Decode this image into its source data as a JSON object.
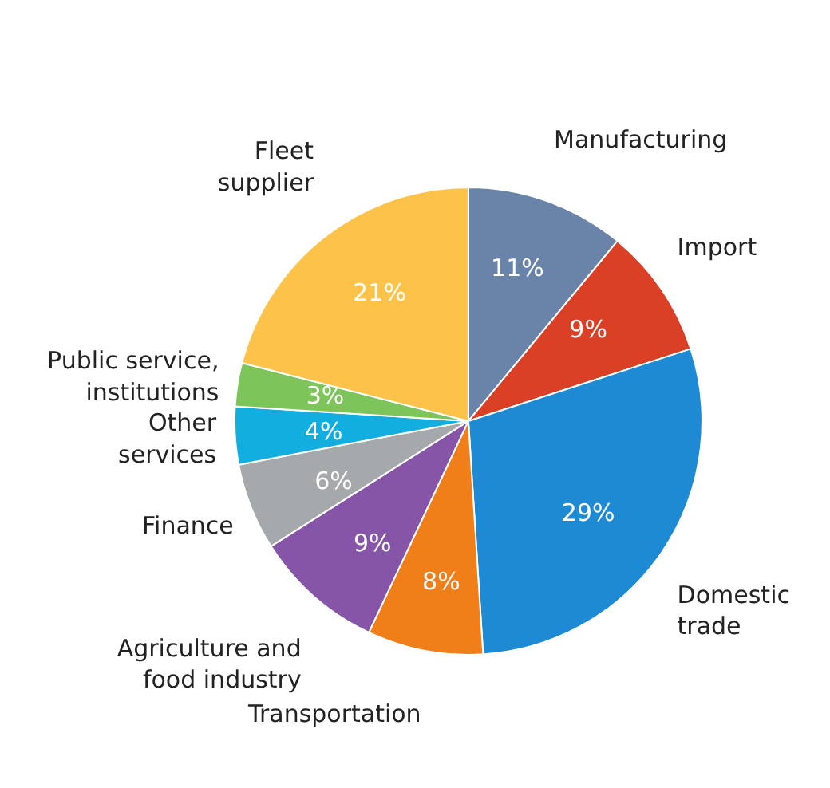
{
  "chart_data": {
    "type": "pie",
    "categories": [
      "Manufacturing",
      "Import",
      "Domestic\ntrade",
      "Transportation",
      "Agriculture and\nfood industry",
      "Finance",
      "Other\nservices",
      "Public service,\ninstitutions",
      "Fleet\nsupplier"
    ],
    "values": [
      11,
      9,
      29,
      8,
      9,
      6,
      4,
      3,
      21
    ],
    "colors": [
      "#6a83a8",
      "#d94026",
      "#1f8ad4",
      "#f07f1a",
      "#8655a8",
      "#a5a9ab",
      "#13aee0",
      "#7dc45a",
      "#fcc24a"
    ],
    "value_labels": [
      "11%",
      "9%",
      "29%",
      "8%",
      "9%",
      "6%",
      "4%",
      "3%",
      "21%"
    ]
  }
}
